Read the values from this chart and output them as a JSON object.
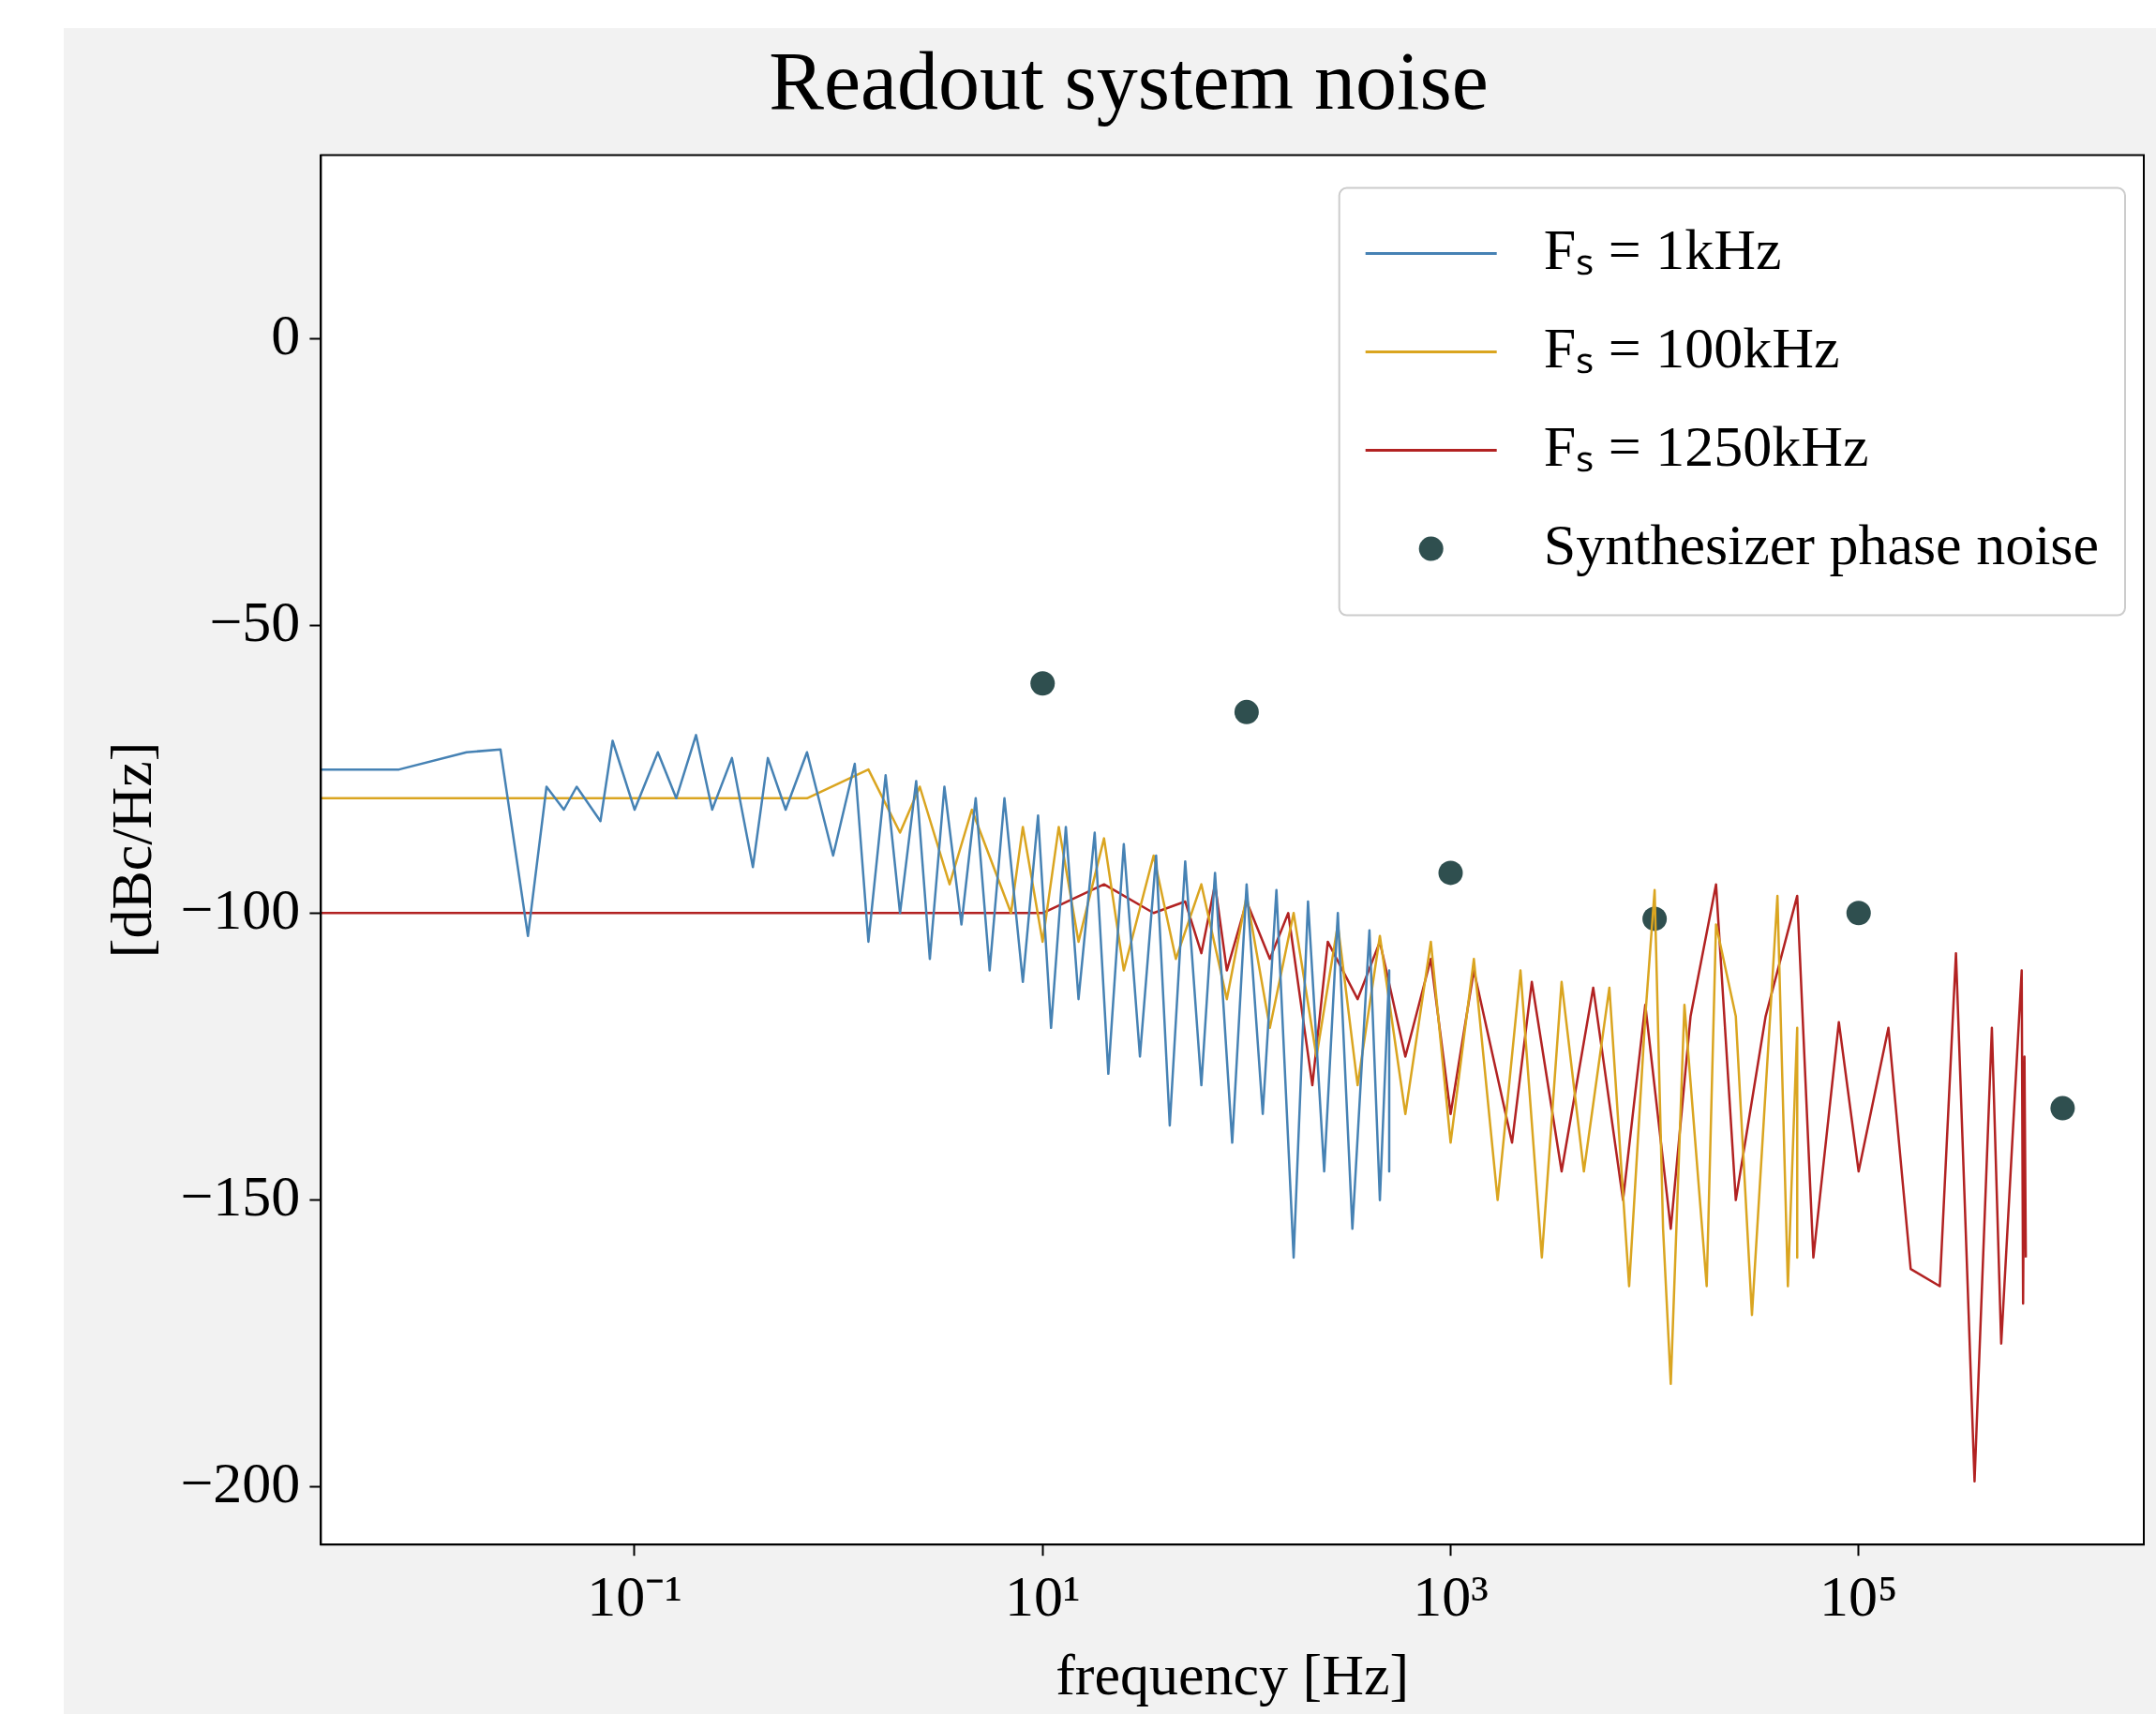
{
  "chart_data": {
    "type": "line",
    "title": "Readout system noise",
    "xlabel": "frequency [Hz]",
    "ylabel": "[dBc/Hz]",
    "log": "x",
    "grid": false,
    "legend": "top right",
    "marker": "none",
    "line_style": "solid",
    "xlim": [
      0.0029,
      2500000
    ],
    "ylim": [
      -210,
      32
    ],
    "xticks": [
      {
        "value": 0.1,
        "label": "10⁻¹"
      },
      {
        "value": 10,
        "label": "10¹"
      },
      {
        "value": 1000,
        "label": "10³"
      },
      {
        "value": 100000,
        "label": "10⁵"
      }
    ],
    "yticks": [
      {
        "value": 0,
        "label": "0"
      },
      {
        "value": -50,
        "label": "−50"
      },
      {
        "value": -100,
        "label": "−100"
      },
      {
        "value": -150,
        "label": "−150"
      },
      {
        "value": -200,
        "label": "−200"
      }
    ],
    "series": [
      {
        "name": "Fₛ = 1kHz",
        "color": "#4682b4",
        "x": [
          0.0029,
          0.007,
          0.015,
          0.022,
          0.03,
          0.037,
          0.045,
          0.052,
          0.068,
          0.078,
          0.1,
          0.13,
          0.16,
          0.2,
          0.24,
          0.3,
          0.38,
          0.45,
          0.55,
          0.7,
          0.94,
          1.2,
          1.4,
          1.7,
          2,
          2.4,
          2.8,
          3.3,
          4,
          4.7,
          5.5,
          6.5,
          8,
          9.5,
          11,
          13,
          15,
          18,
          21,
          25,
          30,
          36,
          42,
          50,
          60,
          70,
          85,
          100,
          120,
          140,
          170,
          200,
          240,
          280,
          330,
          400,
          450,
          500,
          500
        ],
        "values": [
          -75,
          -75,
          -72,
          -71.5,
          -104,
          -78,
          -82,
          -78,
          -84,
          -70,
          -82,
          -72,
          -80,
          -69,
          -82,
          -73,
          -92,
          -73,
          -82,
          -72,
          -90,
          -74,
          -105,
          -76,
          -100,
          -77,
          -108,
          -78,
          -102,
          -80,
          -110,
          -80,
          -112,
          -83,
          -120,
          -85,
          -115,
          -86,
          -128,
          -88,
          -125,
          -90,
          -137,
          -91,
          -130,
          -93,
          -140,
          -95,
          -135,
          -96,
          -160,
          -98,
          -145,
          -100,
          -155,
          -103,
          -150,
          -110,
          -145
        ]
      },
      {
        "name": "Fₛ = 100kHz",
        "color": "#daa520",
        "x": [
          0.0029,
          0.7,
          1.4,
          2,
          2.5,
          3.5,
          4.5,
          7,
          8,
          10,
          12,
          15,
          20,
          25,
          35,
          45,
          60,
          80,
          100,
          130,
          170,
          220,
          280,
          350,
          450,
          600,
          800,
          1000,
          1300,
          1700,
          2200,
          2800,
          3500,
          4500,
          6000,
          7500,
          9000,
          10000,
          11000,
          12000,
          14000,
          18000,
          20000,
          25000,
          30000,
          40000,
          45000,
          50000,
          50000
        ],
        "values": [
          -80,
          -80,
          -75,
          -86,
          -78,
          -95,
          -82,
          -100,
          -85,
          -105,
          -85,
          -105,
          -87,
          -110,
          -90,
          -108,
          -95,
          -115,
          -97,
          -120,
          -100,
          -125,
          -102,
          -130,
          -104,
          -135,
          -105,
          -140,
          -108,
          -150,
          -110,
          -160,
          -112,
          -145,
          -113,
          -165,
          -118,
          -96,
          -155,
          -182,
          -116,
          -165,
          -102,
          -118,
          -170,
          -97,
          -165,
          -120,
          -160
        ]
      },
      {
        "name": "Fₛ = 1250kHz",
        "color": "#b22222",
        "x": [
          0.0029,
          10,
          20,
          35,
          50,
          60,
          70,
          80,
          100,
          130,
          160,
          210,
          250,
          350,
          450,
          600,
          800,
          1000,
          1300,
          2000,
          2500,
          3500,
          5000,
          7000,
          9000,
          12000,
          15000,
          20000,
          25000,
          35000,
          50000,
          60000,
          80000,
          100000,
          140000,
          180000,
          250000,
          300000,
          370000,
          450000,
          500000,
          630000,
          640000,
          650000,
          660000
        ],
        "values": [
          -100,
          -100,
          -95,
          -100,
          -98,
          -107,
          -95,
          -110,
          -98,
          -108,
          -100,
          -130,
          -105,
          -115,
          -105,
          -125,
          -108,
          -135,
          -110,
          -140,
          -112,
          -145,
          -113,
          -150,
          -116,
          -155,
          -118,
          -95,
          -150,
          -118,
          -97,
          -160,
          -119,
          -145,
          -120,
          -162,
          -165,
          -107,
          -199,
          -120,
          -175,
          -110,
          -168,
          -125,
          -160
        ]
      },
      {
        "name": "Synthesizer phase noise",
        "type": "scatter",
        "marker": "circle",
        "color": "#2f4f4f",
        "x": [
          10,
          100,
          1000,
          10000,
          100000,
          1000000
        ],
        "values": [
          -60,
          -65,
          -93,
          -101,
          -100,
          -134
        ]
      }
    ]
  }
}
